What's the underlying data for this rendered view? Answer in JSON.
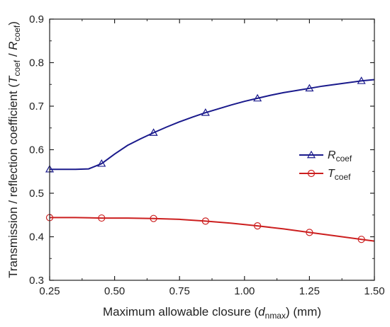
{
  "chart_data": {
    "type": "line",
    "xlabel": {
      "main": "Maximum allowable closure (",
      "var": "d",
      "sub": "nmax",
      "tail": ") (mm)"
    },
    "ylabel": {
      "main": "Transmission / reflection coefficient (",
      "var1": "T",
      "sub1": "coef",
      "mid": " / ",
      "var2": "R",
      "sub2": "coef",
      "tail": ")"
    },
    "xlim": [
      0.25,
      1.5
    ],
    "ylim": [
      0.3,
      0.9
    ],
    "x_ticks": [
      "0.25",
      "0.50",
      "0.75",
      "1.00",
      "1.25",
      "1.50"
    ],
    "x_tick_values": [
      0.25,
      0.5,
      0.75,
      1.0,
      1.25,
      1.5
    ],
    "y_ticks": [
      "0.3",
      "0.4",
      "0.5",
      "0.6",
      "0.7",
      "0.8",
      "0.9"
    ],
    "y_tick_values": [
      0.3,
      0.4,
      0.5,
      0.6,
      0.7,
      0.8,
      0.9
    ],
    "legend_position": "right-middle",
    "series": [
      {
        "name": {
          "var": "R",
          "sub": "coef"
        },
        "color": "#1a1a8c",
        "marker": "triangle",
        "curve_x": [
          0.25,
          0.3,
          0.35,
          0.4,
          0.45,
          0.5,
          0.55,
          0.6,
          0.65,
          0.7,
          0.75,
          0.8,
          0.85,
          0.9,
          0.95,
          1.0,
          1.05,
          1.1,
          1.15,
          1.2,
          1.25,
          1.3,
          1.35,
          1.4,
          1.45,
          1.5
        ],
        "curve_y": [
          0.555,
          0.555,
          0.555,
          0.556,
          0.568,
          0.59,
          0.61,
          0.625,
          0.639,
          0.652,
          0.664,
          0.675,
          0.685,
          0.694,
          0.703,
          0.711,
          0.718,
          0.725,
          0.731,
          0.736,
          0.741,
          0.746,
          0.75,
          0.754,
          0.758,
          0.761
        ],
        "marker_x": [
          0.25,
          0.45,
          0.65,
          0.85,
          1.05,
          1.25,
          1.45
        ],
        "marker_y": [
          0.555,
          0.568,
          0.639,
          0.685,
          0.718,
          0.741,
          0.758
        ]
      },
      {
        "name": {
          "var": "T",
          "sub": "coef"
        },
        "color": "#cc1f1f",
        "marker": "circle",
        "curve_x": [
          0.25,
          0.35,
          0.45,
          0.55,
          0.65,
          0.75,
          0.85,
          0.95,
          1.05,
          1.15,
          1.25,
          1.35,
          1.45,
          1.5
        ],
        "curve_y": [
          0.444,
          0.444,
          0.443,
          0.443,
          0.442,
          0.44,
          0.436,
          0.431,
          0.425,
          0.418,
          0.41,
          0.402,
          0.394,
          0.39
        ],
        "marker_x": [
          0.25,
          0.45,
          0.65,
          0.85,
          1.05,
          1.25,
          1.45
        ],
        "marker_y": [
          0.444,
          0.443,
          0.442,
          0.436,
          0.425,
          0.41,
          0.394
        ]
      }
    ]
  }
}
